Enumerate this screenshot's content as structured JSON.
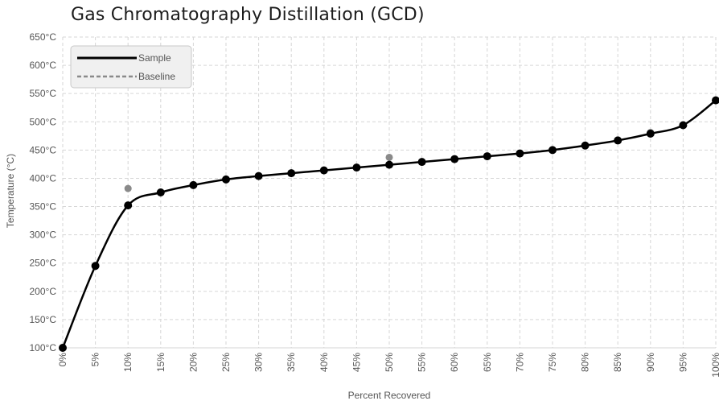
{
  "chart_data": {
    "type": "line",
    "title": "Gas Chromatography Distillation (GCD)",
    "xlabel": "Percent Recovered",
    "ylabel": "Temperature (°C)",
    "x": [
      0,
      5,
      10,
      15,
      20,
      25,
      30,
      35,
      40,
      45,
      50,
      55,
      60,
      65,
      70,
      75,
      80,
      85,
      90,
      95,
      100
    ],
    "x_tick_labels": [
      "0%",
      "5%",
      "10%",
      "15%",
      "20%",
      "25%",
      "30%",
      "35%",
      "40%",
      "45%",
      "50%",
      "55%",
      "60%",
      "65%",
      "70%",
      "75%",
      "80%",
      "85%",
      "90%",
      "95%",
      "100%"
    ],
    "y_ticks": [
      100,
      150,
      200,
      250,
      300,
      350,
      400,
      450,
      500,
      550,
      600,
      650
    ],
    "y_tick_labels": [
      "100°C",
      "150°C",
      "200°C",
      "250°C",
      "300°C",
      "350°C",
      "400°C",
      "450°C",
      "500°C",
      "550°C",
      "600°C",
      "650°C"
    ],
    "xlim": [
      0,
      100
    ],
    "ylim": [
      100,
      650
    ],
    "grid": true,
    "legend_position": "top-left",
    "series": [
      {
        "name": "Sample",
        "style": "solid",
        "color": "#000000",
        "values": [
          100,
          245,
          352,
          375,
          388,
          398,
          404,
          409,
          414,
          419,
          424,
          429,
          434,
          439,
          444,
          450,
          458,
          467,
          479,
          494,
          538
        ]
      },
      {
        "name": "Baseline",
        "style": "dashed",
        "color": "#8a8a8a",
        "points": [
          [
            10,
            382
          ],
          [
            50,
            437
          ],
          [
            90,
            481
          ]
        ]
      }
    ]
  }
}
